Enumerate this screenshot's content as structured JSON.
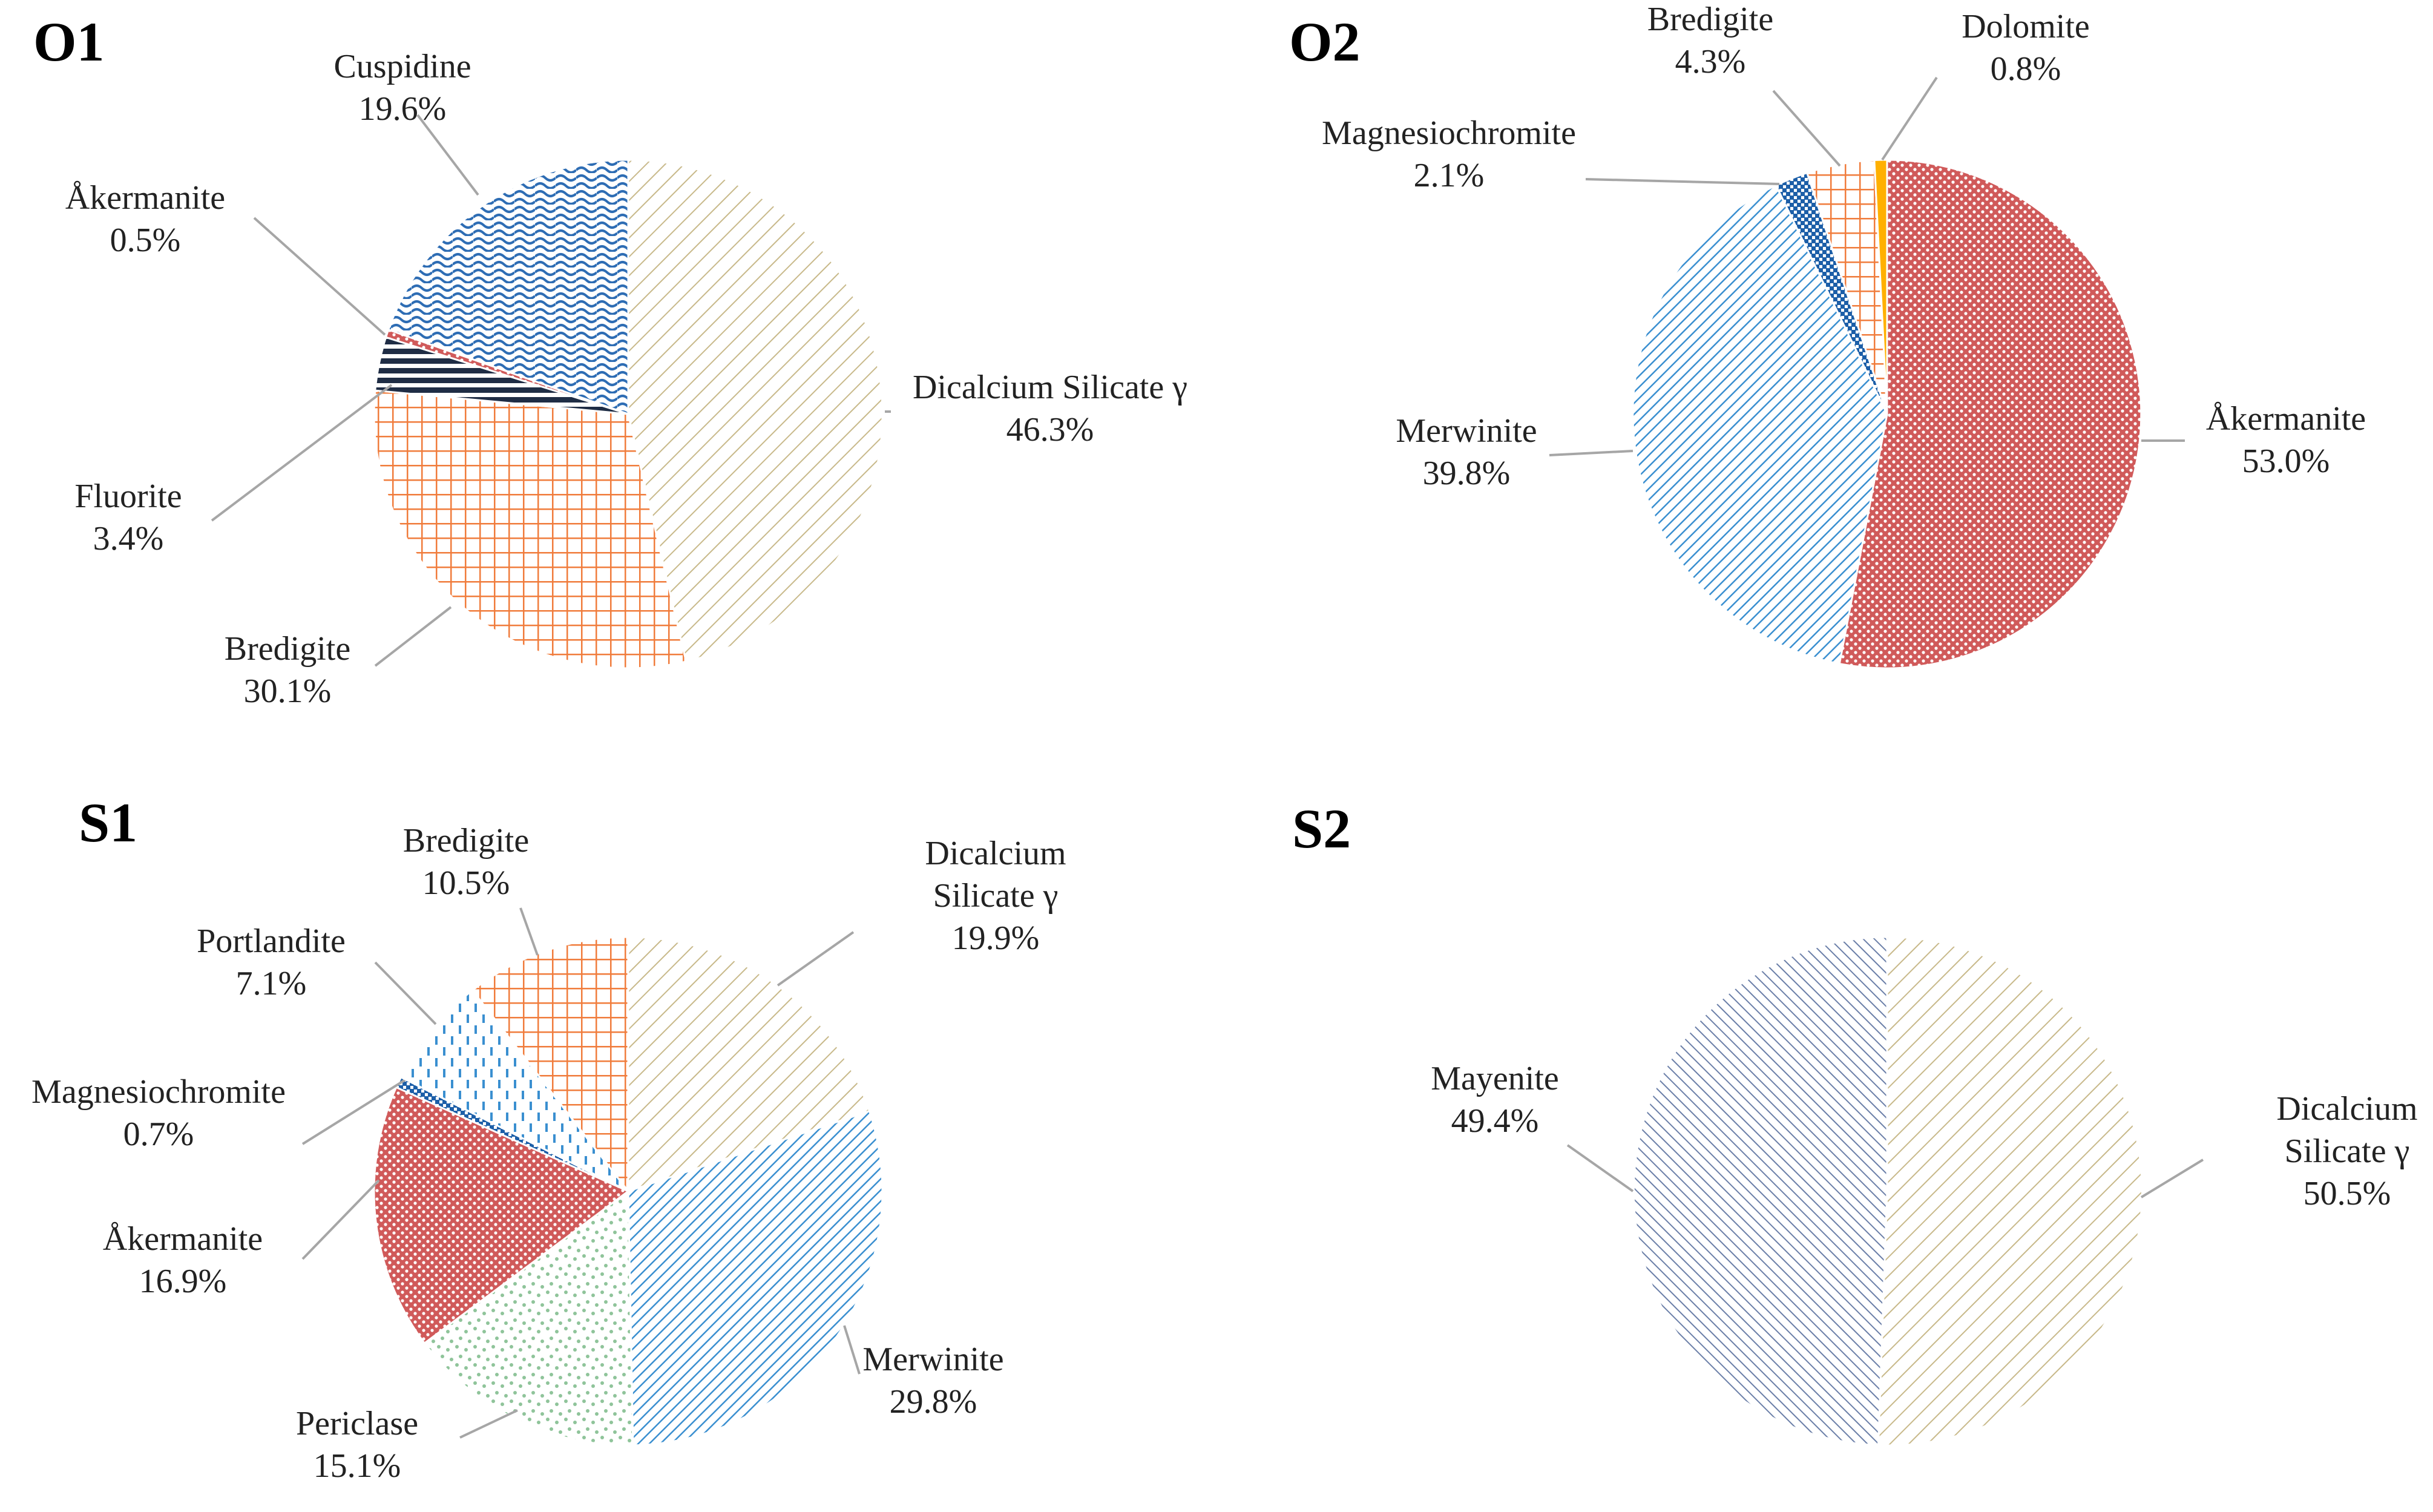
{
  "chart_data": [
    {
      "type": "pie",
      "title": "O1",
      "start": "12 o'clock",
      "direction": "clockwise",
      "slices": [
        {
          "name": [
            "Dicalcium Silicate γ"
          ],
          "value_label": "46.3%",
          "value": 46.3,
          "color": "#c8b98a",
          "pattern": "diag-sparse"
        },
        {
          "name": [
            "Bredigite"
          ],
          "value_label": "30.1%",
          "value": 30.1,
          "color": "#f07c3c",
          "pattern": "grid"
        },
        {
          "name": [
            "Fluorite"
          ],
          "value_label": "3.4%",
          "value": 3.4,
          "color": "#1f2d45",
          "pattern": "hstripe"
        },
        {
          "name": [
            "Åkermanite"
          ],
          "value_label": "0.5%",
          "value": 0.5,
          "color": "#d05a5a",
          "pattern": "dots"
        },
        {
          "name": [
            "Cuspidine"
          ],
          "value_label": "19.6%",
          "value": 19.6,
          "color": "#2e6db4",
          "pattern": "wave"
        }
      ]
    },
    {
      "type": "pie",
      "title": "O2",
      "start": "12 o'clock",
      "direction": "clockwise",
      "slices": [
        {
          "name": [
            "Åkermanite"
          ],
          "value_label": "53.0%",
          "value": 53.0,
          "color": "#d05a5a",
          "pattern": "dots"
        },
        {
          "name": [
            "Merwinite"
          ],
          "value_label": "39.8%",
          "value": 39.8,
          "color": "#3a8fd0",
          "pattern": "diag-dense"
        },
        {
          "name": [
            "Magnesiochromite"
          ],
          "value_label": "2.1%",
          "value": 2.1,
          "color": "#1d5fa8",
          "pattern": "checker"
        },
        {
          "name": [
            "Bredigite"
          ],
          "value_label": "4.3%",
          "value": 4.3,
          "color": "#f07c3c",
          "pattern": "grid"
        },
        {
          "name": [
            "Dolomite"
          ],
          "value_label": "0.8%",
          "value": 0.8,
          "color": "#ffb000",
          "pattern": "solid"
        }
      ]
    },
    {
      "type": "pie",
      "title": "S1",
      "start": "12 o'clock",
      "direction": "clockwise",
      "slices": [
        {
          "name": [
            "Dicalcium",
            "Silicate γ"
          ],
          "value_label": "19.9%",
          "value": 19.9,
          "color": "#c8b98a",
          "pattern": "diag-sparse"
        },
        {
          "name": [
            "Merwinite"
          ],
          "value_label": "29.8%",
          "value": 29.8,
          "color": "#3a8fd0",
          "pattern": "diag-dense"
        },
        {
          "name": [
            "Periclase"
          ],
          "value_label": "15.1%",
          "value": 15.1,
          "color": "#8fc49a",
          "pattern": "speckle"
        },
        {
          "name": [
            "Åkermanite"
          ],
          "value_label": "16.9%",
          "value": 16.9,
          "color": "#d05a5a",
          "pattern": "dots"
        },
        {
          "name": [
            "Magnesiochromite"
          ],
          "value_label": "0.7%",
          "value": 0.7,
          "color": "#1d5fa8",
          "pattern": "checker"
        },
        {
          "name": [
            "Portlandite"
          ],
          "value_label": "7.1%",
          "value": 7.1,
          "color": "#3a8fd0",
          "pattern": "dash"
        },
        {
          "name": [
            "Bredigite"
          ],
          "value_label": "10.5%",
          "value": 10.5,
          "color": "#f07c3c",
          "pattern": "grid"
        }
      ]
    },
    {
      "type": "pie",
      "title": "S2",
      "start": "12 o'clock",
      "direction": "clockwise",
      "slices": [
        {
          "name": [
            "Dicalcium",
            "Silicate γ"
          ],
          "value_label": "50.5%",
          "value": 50.5,
          "color": "#c8b98a",
          "pattern": "diag-sparse"
        },
        {
          "name": [
            "Mayenite"
          ],
          "value_label": "49.4%",
          "value": 49.4,
          "color": "#6b7fa8",
          "pattern": "diag-back"
        }
      ]
    }
  ]
}
